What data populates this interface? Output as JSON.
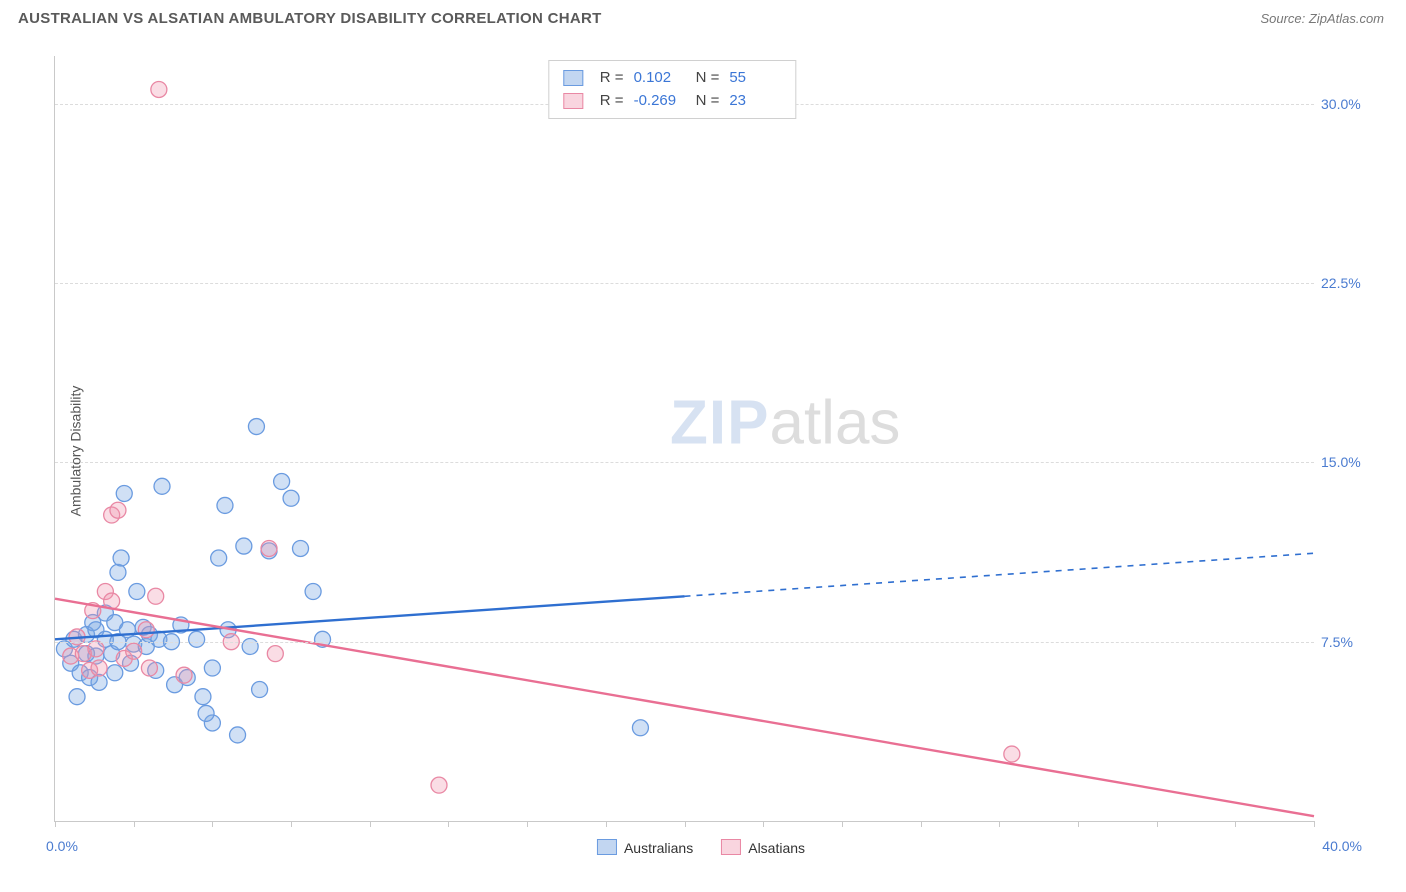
{
  "header": {
    "title": "AUSTRALIAN VS ALSATIAN AMBULATORY DISABILITY CORRELATION CHART",
    "source": "Source: ZipAtlas.com"
  },
  "chart": {
    "type": "scatter",
    "ylabel": "Ambulatory Disability",
    "watermark_zip": "ZIP",
    "watermark_atlas": "atlas",
    "xlim": [
      0,
      40
    ],
    "ylim": [
      0,
      32
    ],
    "xticks_pct": [
      0,
      2.5,
      5,
      7.5,
      10,
      12.5,
      15,
      17.5,
      20,
      22.5,
      25,
      27.5,
      30,
      32.5,
      35,
      37.5,
      40
    ],
    "yticks": [
      {
        "v": 7.5,
        "label": "7.5%"
      },
      {
        "v": 15.0,
        "label": "15.0%"
      },
      {
        "v": 22.5,
        "label": "22.5%"
      },
      {
        "v": 30.0,
        "label": "30.0%"
      }
    ],
    "xaxis_left_label": "0.0%",
    "xaxis_right_label": "40.0%",
    "grid_color": "#dcdcdc",
    "axis_color": "#c9c9c9",
    "background_color": "#ffffff",
    "marker_radius": 8,
    "marker_stroke_width": 1.3,
    "line_width": 2.4,
    "series": [
      {
        "name": "Australians",
        "fill": "rgba(120,165,225,0.35)",
        "stroke": "#6a9be0",
        "line_color": "#2f6fd0",
        "trend_solid": {
          "x1": 0,
          "y1": 7.6,
          "x2": 20,
          "y2": 9.4
        },
        "trend_dash": {
          "x1": 20,
          "y1": 9.4,
          "x2": 40,
          "y2": 11.2
        },
        "points": [
          {
            "x": 0.3,
            "y": 7.2
          },
          {
            "x": 0.5,
            "y": 6.6
          },
          {
            "x": 0.6,
            "y": 7.6
          },
          {
            "x": 0.8,
            "y": 6.2
          },
          {
            "x": 0.7,
            "y": 5.2
          },
          {
            "x": 1.0,
            "y": 7.8
          },
          {
            "x": 1.0,
            "y": 7.0
          },
          {
            "x": 1.1,
            "y": 6.0
          },
          {
            "x": 1.2,
            "y": 8.3
          },
          {
            "x": 1.3,
            "y": 8.0
          },
          {
            "x": 1.3,
            "y": 6.9
          },
          {
            "x": 1.4,
            "y": 5.8
          },
          {
            "x": 1.6,
            "y": 7.6
          },
          {
            "x": 1.6,
            "y": 8.7
          },
          {
            "x": 1.8,
            "y": 7.0
          },
          {
            "x": 1.9,
            "y": 8.3
          },
          {
            "x": 1.9,
            "y": 6.2
          },
          {
            "x": 2.0,
            "y": 7.5
          },
          {
            "x": 2.0,
            "y": 10.4
          },
          {
            "x": 2.1,
            "y": 11.0
          },
          {
            "x": 2.2,
            "y": 13.7
          },
          {
            "x": 2.3,
            "y": 8.0
          },
          {
            "x": 2.4,
            "y": 6.6
          },
          {
            "x": 2.5,
            "y": 7.4
          },
          {
            "x": 2.6,
            "y": 9.6
          },
          {
            "x": 2.8,
            "y": 8.1
          },
          {
            "x": 2.9,
            "y": 7.3
          },
          {
            "x": 3.0,
            "y": 7.8
          },
          {
            "x": 3.2,
            "y": 6.3
          },
          {
            "x": 3.3,
            "y": 7.6
          },
          {
            "x": 3.4,
            "y": 14.0
          },
          {
            "x": 3.7,
            "y": 7.5
          },
          {
            "x": 3.8,
            "y": 5.7
          },
          {
            "x": 4.0,
            "y": 8.2
          },
          {
            "x": 4.2,
            "y": 6.0
          },
          {
            "x": 4.5,
            "y": 7.6
          },
          {
            "x": 4.7,
            "y": 5.2
          },
          {
            "x": 5.0,
            "y": 6.4
          },
          {
            "x": 5.0,
            "y": 4.1
          },
          {
            "x": 5.2,
            "y": 11.0
          },
          {
            "x": 5.4,
            "y": 13.2
          },
          {
            "x": 5.5,
            "y": 8.0
          },
          {
            "x": 5.8,
            "y": 3.6
          },
          {
            "x": 6.0,
            "y": 11.5
          },
          {
            "x": 6.2,
            "y": 7.3
          },
          {
            "x": 6.4,
            "y": 16.5
          },
          {
            "x": 6.5,
            "y": 5.5
          },
          {
            "x": 6.8,
            "y": 11.3
          },
          {
            "x": 7.2,
            "y": 14.2
          },
          {
            "x": 7.5,
            "y": 13.5
          },
          {
            "x": 7.8,
            "y": 11.4
          },
          {
            "x": 8.2,
            "y": 9.6
          },
          {
            "x": 8.5,
            "y": 7.6
          },
          {
            "x": 18.6,
            "y": 3.9
          },
          {
            "x": 4.8,
            "y": 4.5
          }
        ]
      },
      {
        "name": "Alsatians",
        "fill": "rgba(240,150,175,0.32)",
        "stroke": "#e988a4",
        "line_color": "#e96f93",
        "trend_solid": {
          "x1": 0,
          "y1": 9.3,
          "x2": 40,
          "y2": 0.2
        },
        "trend_dash": null,
        "points": [
          {
            "x": 0.5,
            "y": 6.9
          },
          {
            "x": 0.7,
            "y": 7.7
          },
          {
            "x": 0.9,
            "y": 7.0
          },
          {
            "x": 1.1,
            "y": 6.3
          },
          {
            "x": 1.2,
            "y": 8.8
          },
          {
            "x": 1.3,
            "y": 7.2
          },
          {
            "x": 1.4,
            "y": 6.4
          },
          {
            "x": 1.6,
            "y": 9.6
          },
          {
            "x": 1.8,
            "y": 12.8
          },
          {
            "x": 1.8,
            "y": 9.2
          },
          {
            "x": 2.0,
            "y": 13.0
          },
          {
            "x": 2.2,
            "y": 6.8
          },
          {
            "x": 2.5,
            "y": 7.1
          },
          {
            "x": 2.9,
            "y": 8.0
          },
          {
            "x": 3.0,
            "y": 6.4
          },
          {
            "x": 3.2,
            "y": 9.4
          },
          {
            "x": 3.3,
            "y": 30.6
          },
          {
            "x": 4.1,
            "y": 6.1
          },
          {
            "x": 5.6,
            "y": 7.5
          },
          {
            "x": 6.8,
            "y": 11.4
          },
          {
            "x": 7.0,
            "y": 7.0
          },
          {
            "x": 12.2,
            "y": 1.5
          },
          {
            "x": 30.4,
            "y": 2.8
          }
        ]
      }
    ],
    "top_legend": [
      {
        "swatch_fill": "rgba(120,165,225,0.45)",
        "swatch_stroke": "#6a9be0",
        "r_label": "R =",
        "r": "0.102",
        "n_label": "N =",
        "n": "55"
      },
      {
        "swatch_fill": "rgba(240,150,175,0.40)",
        "swatch_stroke": "#e988a4",
        "r_label": "R =",
        "r": "-0.269",
        "n_label": "N =",
        "n": "23"
      }
    ],
    "bottom_legend": [
      {
        "swatch_fill": "rgba(120,165,225,0.45)",
        "swatch_stroke": "#6a9be0",
        "label": "Australians"
      },
      {
        "swatch_fill": "rgba(240,150,175,0.40)",
        "swatch_stroke": "#e988a4",
        "label": "Alsatians"
      }
    ]
  }
}
